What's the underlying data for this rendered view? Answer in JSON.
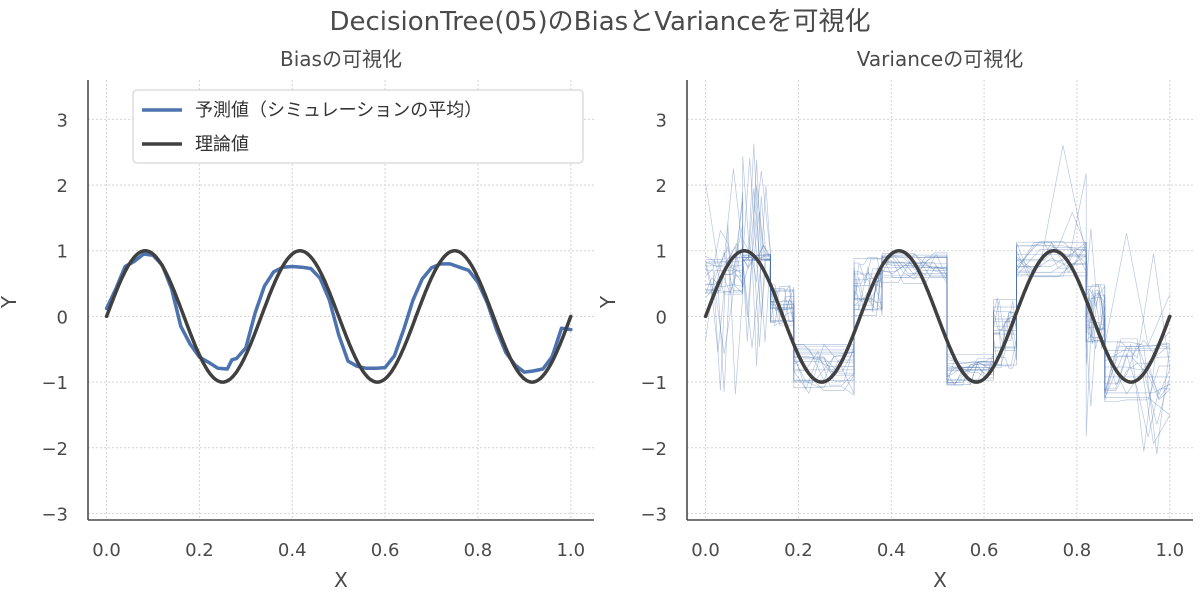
{
  "figure": {
    "suptitle": "DecisionTree(05)のBiasとVarianceを可視化"
  },
  "colors": {
    "prediction": "#4c72b0",
    "theory": "#404040",
    "simulation": "#4c72b0",
    "axis": "#4a4a4a",
    "grid": "#d4d4d4"
  },
  "chart_data": [
    {
      "type": "line",
      "title": "Biasの可視化",
      "xlabel": "X",
      "ylabel": "Y",
      "xlim": [
        -0.04,
        1.05
      ],
      "ylim": [
        -3.1,
        3.6
      ],
      "xticks": [
        0.0,
        0.2,
        0.4,
        0.6,
        0.8,
        1.0
      ],
      "xtick_labels": [
        "0.0",
        "0.2",
        "0.4",
        "0.6",
        "0.8",
        "1.0"
      ],
      "yticks": [
        -3,
        -2,
        -1,
        0,
        1,
        2,
        3
      ],
      "ytick_labels": [
        "−3",
        "−2",
        "−1",
        "0",
        "1",
        "2",
        "3"
      ],
      "grid": true,
      "legend": {
        "position": "upper-right",
        "entries": [
          "予測値（シミュレーションの平均）",
          "理論値"
        ]
      },
      "series": [
        {
          "name": "予測値（シミュレーションの平均）",
          "color": "#4c72b0",
          "x": [
            0.0,
            0.02,
            0.04,
            0.06,
            0.08,
            0.1,
            0.12,
            0.14,
            0.16,
            0.18,
            0.2,
            0.22,
            0.24,
            0.26,
            0.27,
            0.28,
            0.3,
            0.32,
            0.34,
            0.36,
            0.38,
            0.4,
            0.42,
            0.44,
            0.46,
            0.48,
            0.5,
            0.52,
            0.54,
            0.56,
            0.58,
            0.6,
            0.62,
            0.64,
            0.66,
            0.68,
            0.7,
            0.72,
            0.74,
            0.76,
            0.78,
            0.8,
            0.82,
            0.84,
            0.86,
            0.88,
            0.9,
            0.92,
            0.94,
            0.96,
            0.98,
            1.0
          ],
          "y": [
            0.12,
            0.42,
            0.76,
            0.84,
            0.95,
            0.93,
            0.78,
            0.42,
            -0.15,
            -0.42,
            -0.62,
            -0.7,
            -0.79,
            -0.8,
            -0.66,
            -0.64,
            -0.48,
            0.05,
            0.46,
            0.68,
            0.75,
            0.76,
            0.75,
            0.73,
            0.58,
            0.25,
            -0.28,
            -0.68,
            -0.76,
            -0.79,
            -0.79,
            -0.78,
            -0.6,
            -0.2,
            0.25,
            0.57,
            0.74,
            0.8,
            0.8,
            0.75,
            0.7,
            0.52,
            0.21,
            -0.2,
            -0.55,
            -0.74,
            -0.85,
            -0.83,
            -0.8,
            -0.61,
            -0.18,
            -0.2
          ]
        },
        {
          "name": "理論値",
          "color": "#404040",
          "function": "sin(3*2*pi*x)",
          "x_range": [
            0.0,
            1.0
          ]
        }
      ]
    },
    {
      "type": "line",
      "title": "Varianceの可視化",
      "xlabel": "X",
      "ylabel": "Y",
      "xlim": [
        -0.04,
        1.05
      ],
      "ylim": [
        -3.1,
        3.6
      ],
      "xticks": [
        0.0,
        0.2,
        0.4,
        0.6,
        0.8,
        1.0
      ],
      "xtick_labels": [
        "0.0",
        "0.2",
        "0.4",
        "0.6",
        "0.8",
        "1.0"
      ],
      "yticks": [
        -3,
        -2,
        -1,
        0,
        1,
        2,
        3
      ],
      "ytick_labels": [
        "−3",
        "−2",
        "−1",
        "0",
        "1",
        "2",
        "3"
      ],
      "grid": true,
      "simulations": {
        "count": 20,
        "color": "#4c72b0",
        "description_levels": {
          "segments": [
            {
              "x": [
                0.0,
                0.08
              ],
              "y": [
                0.3,
                0.9
              ]
            },
            {
              "x": [
                0.08,
                0.14
              ],
              "y": [
                0.85,
                0.95
              ]
            },
            {
              "x": [
                0.14,
                0.19
              ],
              "y": [
                -0.2,
                0.5
              ]
            },
            {
              "x": [
                0.19,
                0.32
              ],
              "y": [
                -1.2,
                -0.4
              ]
            },
            {
              "x": [
                0.32,
                0.38
              ],
              "y": [
                0.0,
                0.9
              ]
            },
            {
              "x": [
                0.38,
                0.52
              ],
              "y": [
                0.5,
                1.0
              ]
            },
            {
              "x": [
                0.52,
                0.62
              ],
              "y": [
                -1.05,
                -0.55
              ]
            },
            {
              "x": [
                0.62,
                0.67
              ],
              "y": [
                -0.8,
                0.3
              ]
            },
            {
              "x": [
                0.67,
                0.82
              ],
              "y": [
                0.6,
                1.15
              ]
            },
            {
              "x": [
                0.82,
                0.86
              ],
              "y": [
                -0.5,
                0.5
              ]
            },
            {
              "x": [
                0.86,
                1.0
              ],
              "y": [
                -1.3,
                -0.3
              ]
            }
          ]
        }
      },
      "series": [
        {
          "name": "理論値",
          "color": "#404040",
          "function": "sin(3*2*pi*x)",
          "x_range": [
            0.0,
            1.0
          ]
        }
      ]
    }
  ]
}
